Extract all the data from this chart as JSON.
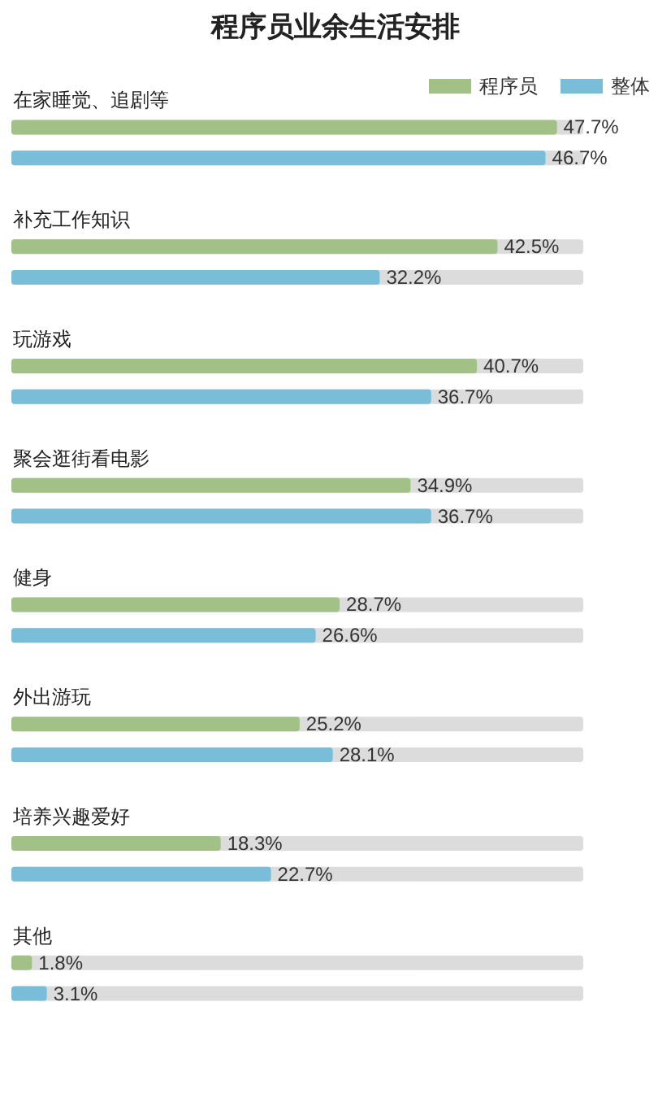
{
  "chart_data": {
    "type": "bar",
    "title": "程序员业余生活安排",
    "orientation": "horizontal",
    "categories": [
      "在家睡觉、追剧等",
      "补充工作知识",
      "玩游戏",
      "聚会逛街看电影",
      "健身",
      "外出游玩",
      "培养兴趣爱好",
      "其他"
    ],
    "series": [
      {
        "name": "程序员",
        "color": "#a2c186",
        "values": [
          47.7,
          42.5,
          40.7,
          34.9,
          28.7,
          25.2,
          18.3,
          1.8
        ],
        "value_labels": [
          "47.7%",
          "42.5%",
          "40.7%",
          "34.9%",
          "28.7%",
          "25.2%",
          "18.3%",
          "1.8%"
        ]
      },
      {
        "name": "整体",
        "color": "#79bdd8",
        "values": [
          46.7,
          32.2,
          36.7,
          36.7,
          26.6,
          28.1,
          22.7,
          3.1
        ],
        "value_labels": [
          "46.7%",
          "32.2%",
          "36.7%",
          "36.7%",
          "26.6%",
          "28.1%",
          "22.7%",
          "3.1%"
        ]
      }
    ],
    "legend": "top right",
    "tick_labels": "y"
  }
}
